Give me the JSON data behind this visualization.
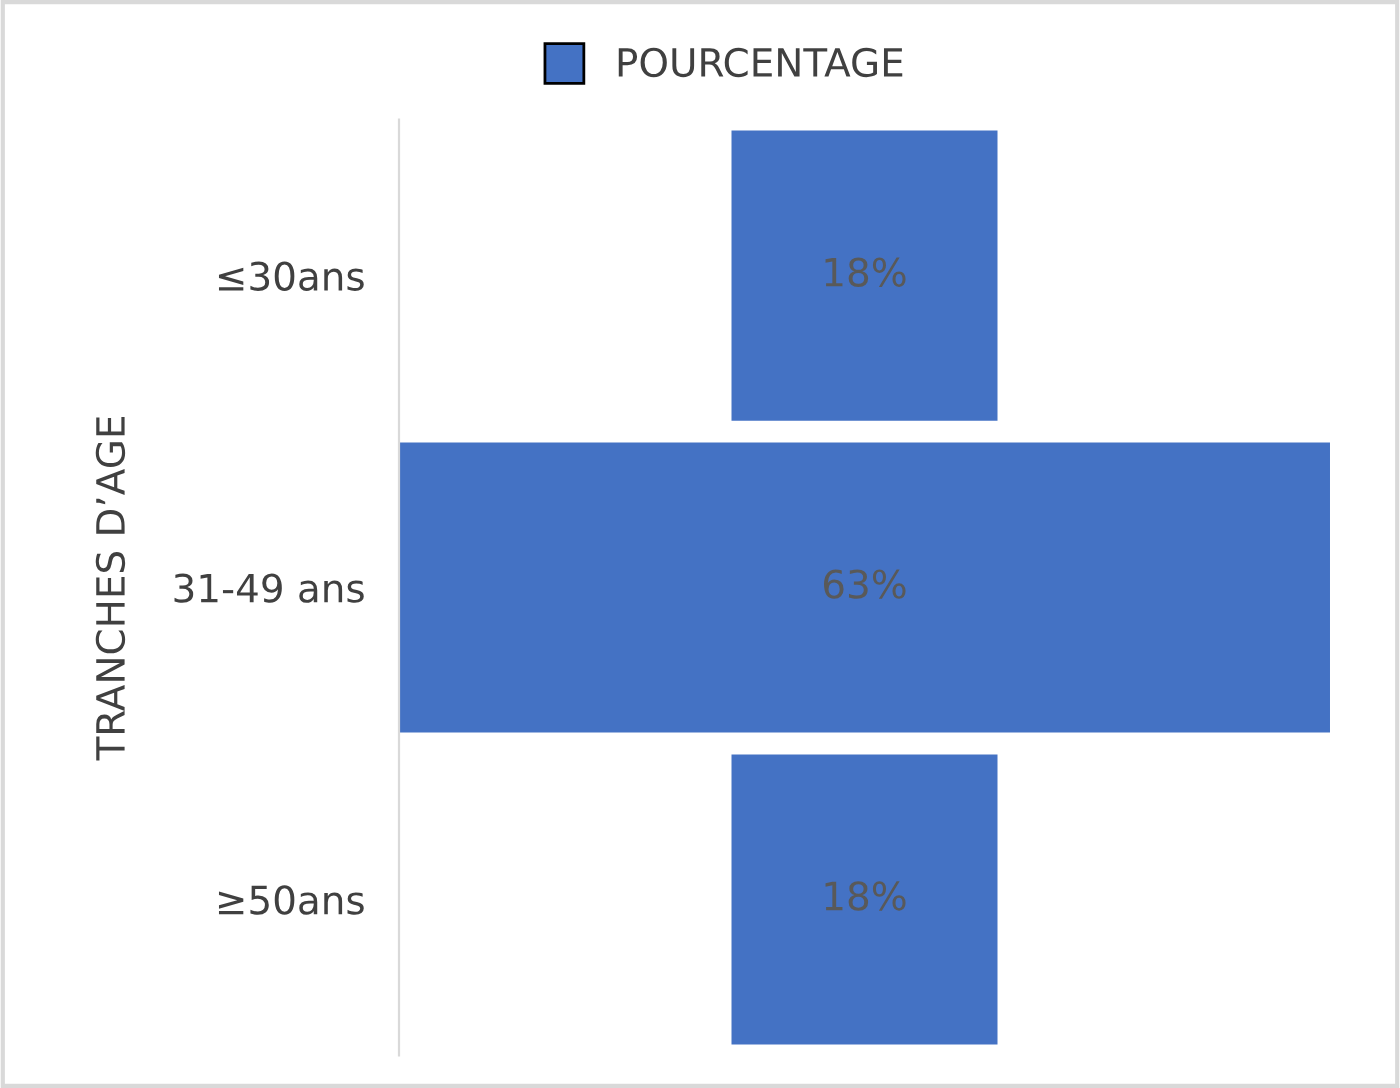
{
  "chart_data": {
    "type": "other",
    "ylabel": "TRANCHES D’AGE",
    "categories": [
      "≤30ans",
      "31-49 ans",
      "≥50ans"
    ],
    "series": [
      {
        "name": "POURCENTAGE",
        "color": "#4472c4",
        "values": [
          18,
          63,
          18
        ],
        "value_labels": [
          "18%",
          "63%",
          "18%"
        ]
      }
    ],
    "legend": "top"
  }
}
